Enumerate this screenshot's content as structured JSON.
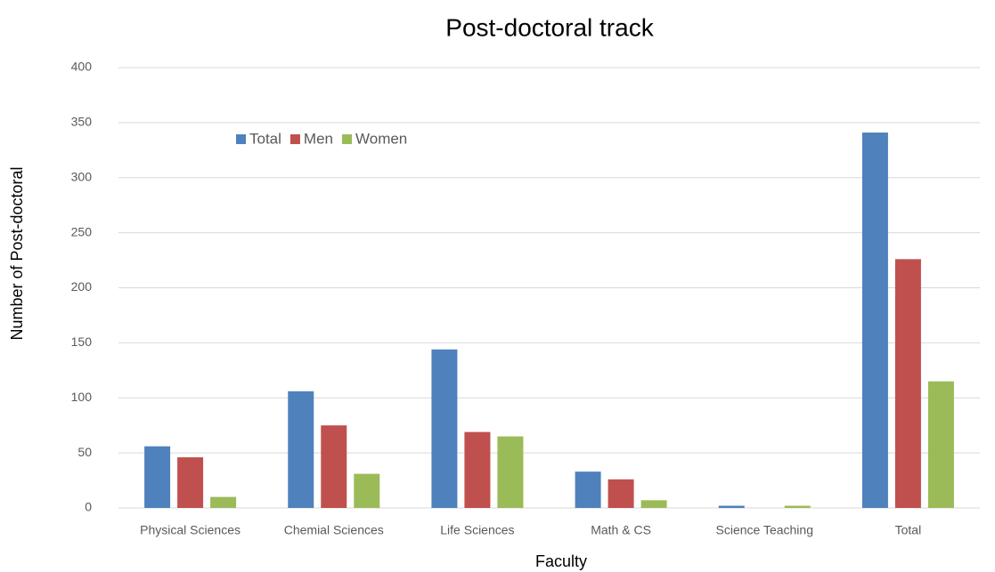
{
  "chart_data": {
    "type": "bar",
    "title": "Post-doctoral track",
    "x_label": "Faculty",
    "y_label": "Number of Post-doctoral",
    "categories": [
      "Physical Sciences",
      "Chemial Sciences",
      "Life Sciences",
      "Math & CS",
      "Science Teaching",
      "Total"
    ],
    "series": [
      {
        "name": "Total",
        "color": "#4f81bd",
        "values": [
          56,
          106,
          144,
          33,
          2,
          341
        ]
      },
      {
        "name": "Men",
        "color": "#c0504d",
        "values": [
          46,
          75,
          69,
          26,
          0,
          226
        ]
      },
      {
        "name": "Women",
        "color": "#9bbb59",
        "values": [
          10,
          31,
          65,
          7,
          2,
          115
        ]
      }
    ],
    "ylim": [
      0,
      400
    ],
    "yticks": [
      0,
      50,
      100,
      150,
      200,
      250,
      300,
      350,
      400
    ],
    "grid": true,
    "legend": "upper left"
  }
}
